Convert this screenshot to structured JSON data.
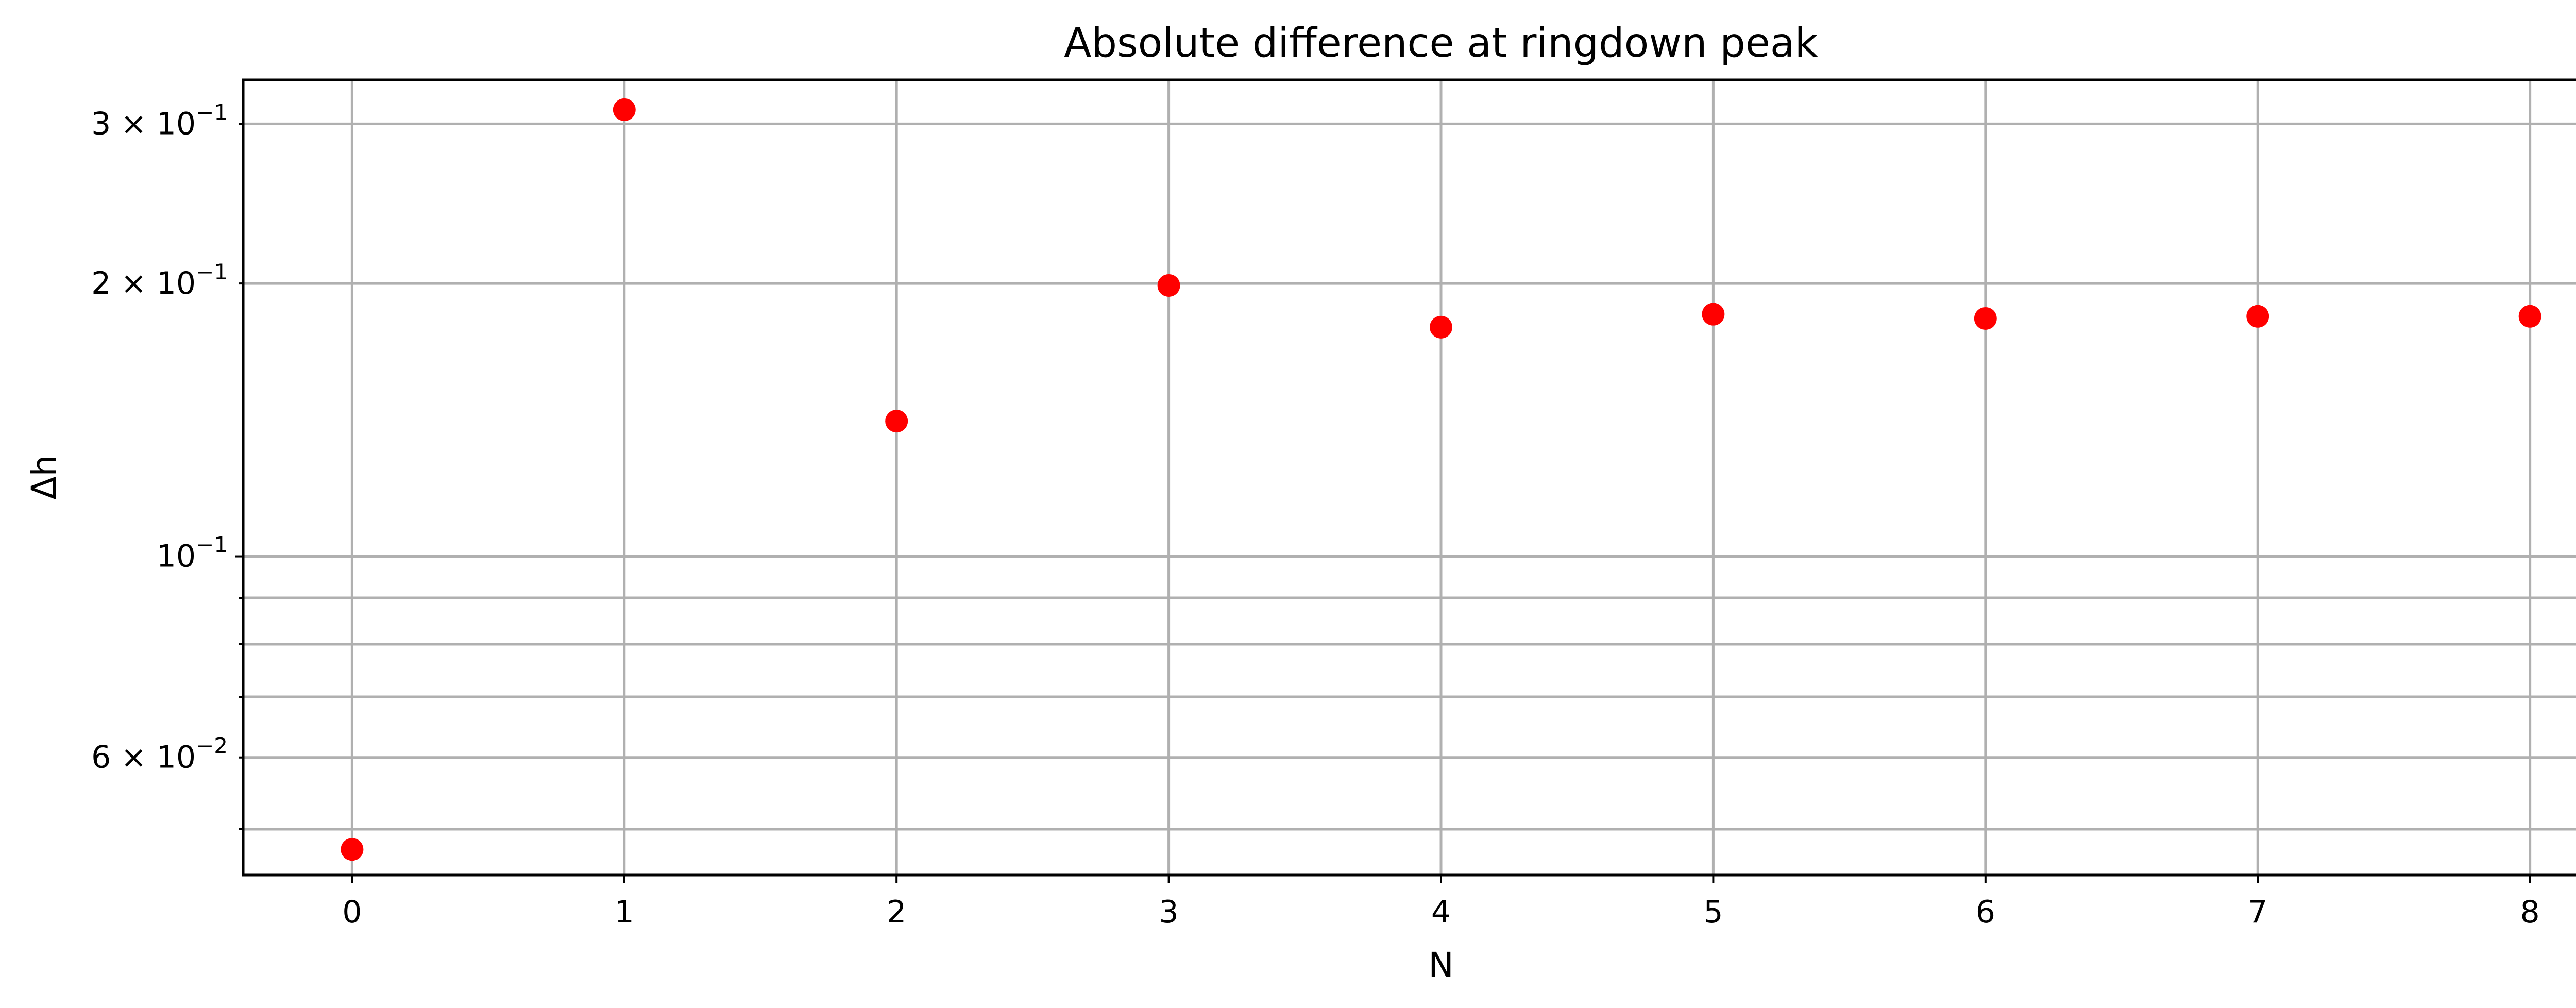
{
  "chart_data": {
    "type": "scatter",
    "title": "Absolute difference at ringdown peak",
    "xlabel": "N",
    "ylabel": "Δh",
    "x": [
      0,
      1,
      2,
      3,
      4,
      5,
      6,
      7,
      8
    ],
    "y": [
      0.0475,
      0.311,
      0.141,
      0.199,
      0.179,
      0.185,
      0.183,
      0.184,
      0.184
    ],
    "xlim": [
      -0.4,
      8.4
    ],
    "ylim": [
      0.0445,
      0.3355
    ],
    "yscale": "log",
    "x_ticks": [
      0,
      1,
      2,
      3,
      4,
      5,
      6,
      7,
      8
    ],
    "x_tick_labels": [
      "0",
      "1",
      "2",
      "3",
      "4",
      "5",
      "6",
      "7",
      "8"
    ],
    "y_major_ticks": [
      {
        "value": 0.1,
        "mantissa": "",
        "base": "10",
        "exp": "−1"
      }
    ],
    "y_minor_labeled_ticks": [
      {
        "value": 0.06,
        "mantissa": "6 × ",
        "base": "10",
        "exp": "−2"
      },
      {
        "value": 0.2,
        "mantissa": "2 × ",
        "base": "10",
        "exp": "−1"
      },
      {
        "value": 0.3,
        "mantissa": "3 × ",
        "base": "10",
        "exp": "−1"
      }
    ],
    "y_minor_unlabeled_ticks": [
      0.05,
      0.07,
      0.08,
      0.09
    ],
    "grid": true,
    "marker_color": "#ff0000"
  }
}
